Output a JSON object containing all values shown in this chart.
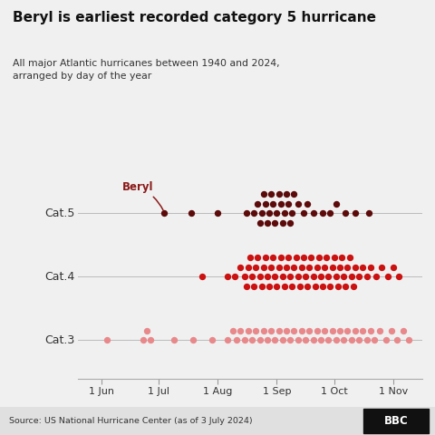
{
  "title": "Beryl is earliest recorded category 5 hurricane",
  "subtitle": "All major Atlantic hurricanes between 1940 and 2024,\narranged by day of the year",
  "source": "Source: US National Hurricane Center (as of 3 July 2024)",
  "background_color": "#f0f0f0",
  "cat_colors": [
    "#5c0a0a",
    "#cc1111",
    "#e8888a"
  ],
  "beryl_day": 185,
  "beryl_color": "#8b1a1a",
  "x_ticks_days": [
    152,
    182,
    213,
    244,
    274,
    305
  ],
  "x_tick_labels": [
    "1 Jun",
    "1 Jul",
    "1 Aug",
    "1 Sep",
    "1 Oct",
    "1 Nov"
  ],
  "xlim": [
    140,
    320
  ],
  "cat5_days": [
    185,
    199,
    213,
    228,
    232,
    234,
    235,
    236,
    237,
    238,
    239,
    240,
    241,
    242,
    243,
    244,
    245,
    246,
    247,
    248,
    249,
    250,
    251,
    252,
    253,
    255,
    258,
    260,
    263,
    268,
    272,
    275,
    280,
    285,
    292
  ],
  "cat4_days": [
    205,
    218,
    222,
    225,
    227,
    228,
    229,
    230,
    231,
    232,
    233,
    234,
    235,
    236,
    237,
    238,
    239,
    240,
    241,
    242,
    243,
    244,
    245,
    246,
    247,
    248,
    249,
    250,
    251,
    252,
    253,
    254,
    255,
    256,
    257,
    258,
    259,
    260,
    261,
    262,
    263,
    264,
    265,
    266,
    267,
    268,
    269,
    270,
    271,
    272,
    273,
    274,
    275,
    276,
    277,
    278,
    279,
    280,
    281,
    282,
    283,
    284,
    285,
    287,
    289,
    291,
    293,
    296,
    299,
    302,
    305,
    308
  ],
  "cat3_days": [
    155,
    174,
    176,
    178,
    190,
    200,
    210,
    218,
    221,
    223,
    225,
    227,
    229,
    231,
    233,
    235,
    237,
    239,
    241,
    243,
    245,
    247,
    249,
    251,
    253,
    255,
    257,
    259,
    261,
    263,
    265,
    267,
    269,
    271,
    273,
    275,
    277,
    279,
    281,
    283,
    285,
    287,
    289,
    291,
    293,
    295,
    298,
    301,
    304,
    307,
    310,
    313
  ]
}
